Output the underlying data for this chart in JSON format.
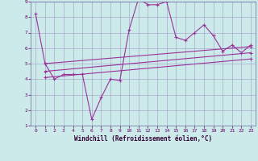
{
  "xlabel": "Windchill (Refroidissement éolien,°C)",
  "background_color": "#cceaea",
  "grid_color": "#aaaacc",
  "line_color": "#993399",
  "xlim": [
    -0.5,
    23.5
  ],
  "ylim": [
    1,
    9
  ],
  "xticks": [
    0,
    1,
    2,
    3,
    4,
    5,
    6,
    7,
    8,
    9,
    10,
    11,
    12,
    13,
    14,
    15,
    16,
    17,
    18,
    19,
    20,
    21,
    22,
    23
  ],
  "yticks": [
    1,
    2,
    3,
    4,
    5,
    6,
    7,
    8,
    9
  ],
  "series1_x": [
    0,
    1,
    2,
    3,
    4,
    5,
    6,
    7,
    8,
    9,
    10,
    11,
    12,
    13,
    14,
    15,
    16,
    17,
    18,
    19,
    20,
    21,
    22,
    23
  ],
  "series1_y": [
    8.2,
    5.0,
    4.0,
    4.3,
    4.3,
    4.3,
    1.4,
    2.8,
    4.0,
    3.9,
    7.2,
    9.2,
    8.8,
    8.8,
    9.0,
    6.7,
    6.5,
    7.0,
    7.5,
    6.8,
    5.8,
    6.2,
    5.7,
    6.2
  ],
  "series2_x": [
    1,
    23
  ],
  "series2_y": [
    5.0,
    6.1
  ],
  "series3_x": [
    1,
    23
  ],
  "series3_y": [
    4.5,
    5.7
  ],
  "series4_x": [
    1,
    23
  ],
  "series4_y": [
    4.1,
    5.3
  ]
}
